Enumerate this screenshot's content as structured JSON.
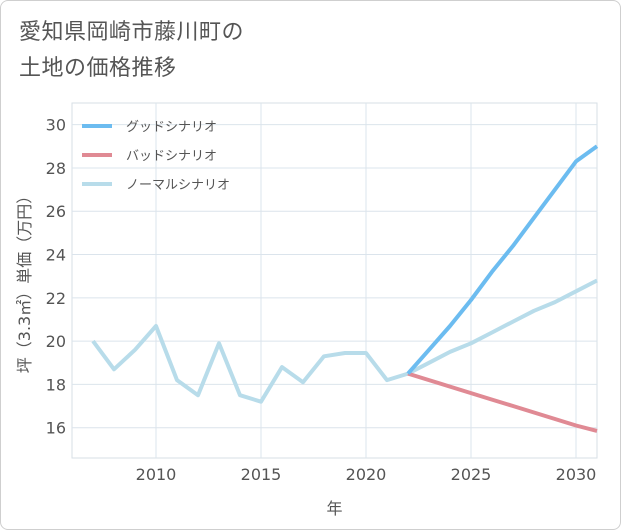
{
  "title_lines": [
    "愛知県岡崎市藤川町の",
    "土地の価格推移"
  ],
  "chart_data": {
    "type": "line",
    "xlabel": "年",
    "ylabel": "坪（3.3㎡）単価（万円）",
    "xlim": [
      2006,
      2031
    ],
    "ylim": [
      14.6,
      31
    ],
    "xticks": [
      2010,
      2015,
      2020,
      2025,
      2030
    ],
    "yticks": [
      16,
      18,
      20,
      22,
      24,
      26,
      28,
      30
    ],
    "grid": true,
    "legend_position": "top-left",
    "series": [
      {
        "name": "グッドシナリオ",
        "color": "#6cbcf0",
        "x": [
          2022,
          2023,
          2024,
          2025,
          2026,
          2027,
          2028,
          2029,
          2030,
          2031
        ],
        "y": [
          18.5,
          19.6,
          20.7,
          21.9,
          23.2,
          24.4,
          25.7,
          27.0,
          28.3,
          29.0
        ]
      },
      {
        "name": "バッドシナリオ",
        "color": "#e08a94",
        "x": [
          2022,
          2023,
          2024,
          2025,
          2026,
          2027,
          2028,
          2029,
          2030,
          2031
        ],
        "y": [
          18.5,
          18.2,
          17.9,
          17.6,
          17.3,
          17.0,
          16.7,
          16.4,
          16.1,
          15.85
        ]
      },
      {
        "name": "ノーマルシナリオ",
        "color": "#b8dcea",
        "x": [
          2007,
          2008,
          2009,
          2010,
          2011,
          2012,
          2013,
          2014,
          2015,
          2016,
          2017,
          2018,
          2019,
          2020,
          2021,
          2022,
          2023,
          2024,
          2025,
          2026,
          2027,
          2028,
          2029,
          2030,
          2031
        ],
        "y": [
          20.0,
          18.7,
          19.6,
          20.7,
          18.2,
          17.5,
          19.9,
          17.5,
          17.2,
          18.8,
          18.1,
          19.3,
          19.45,
          19.45,
          18.2,
          18.5,
          19.0,
          19.5,
          19.9,
          20.4,
          20.9,
          21.4,
          21.8,
          22.3,
          22.8
        ]
      }
    ]
  }
}
